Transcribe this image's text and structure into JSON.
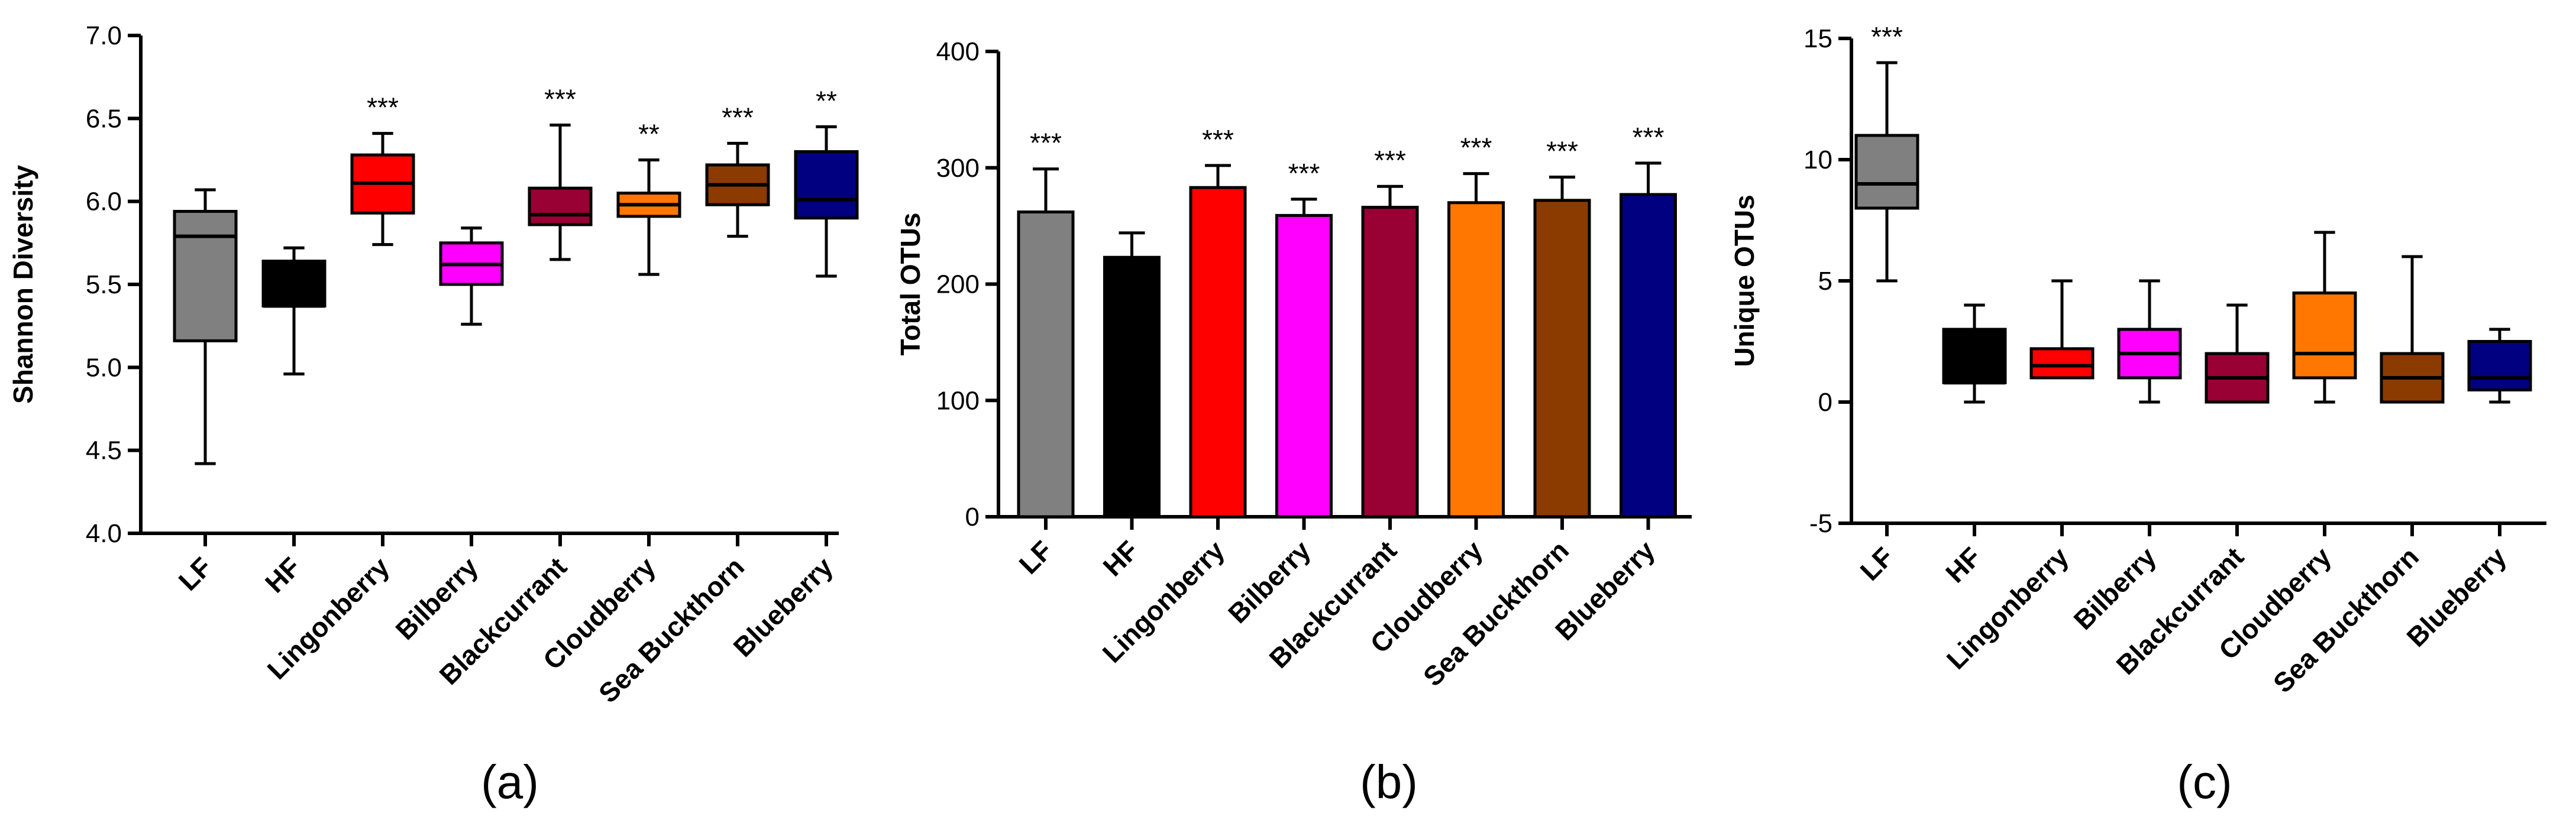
{
  "chart_data": [
    {
      "type": "box",
      "panel_label": "(a)",
      "title": "",
      "xlabel": "",
      "ylabel": "Shannon  Diversity",
      "ylim": [
        4.0,
        7.0
      ],
      "yticks": [
        4.0,
        4.5,
        5.0,
        5.5,
        6.0,
        6.5,
        7.0
      ],
      "ytick_labels": [
        "4.0",
        "4.5",
        "5.0",
        "5.5",
        "6.0",
        "6.5",
        "7.0"
      ],
      "categories": [
        "LF",
        "HF",
        "Lingonberry",
        "Bilberry",
        "Blackcurrant",
        "Cloudberry",
        "Sea Buckthorn",
        "Blueberry"
      ],
      "colors": [
        "#808080",
        "#000000",
        "#ff0000",
        "#ff00ff",
        "#990033",
        "#ff7700",
        "#8b3a00",
        "#000080"
      ],
      "boxes": [
        {
          "min": 4.42,
          "q1": 5.16,
          "median": 5.79,
          "q3": 5.94,
          "max": 6.07
        },
        {
          "min": 4.96,
          "q1": 5.37,
          "median": 5.37,
          "q3": 5.64,
          "max": 5.72
        },
        {
          "min": 5.74,
          "q1": 5.93,
          "median": 6.11,
          "q3": 6.28,
          "max": 6.41
        },
        {
          "min": 5.26,
          "q1": 5.5,
          "median": 5.62,
          "q3": 5.75,
          "max": 5.84
        },
        {
          "min": 5.65,
          "q1": 5.86,
          "median": 5.92,
          "q3": 6.08,
          "max": 6.46
        },
        {
          "min": 5.56,
          "q1": 5.91,
          "median": 5.98,
          "q3": 6.05,
          "max": 6.25
        },
        {
          "min": 5.79,
          "q1": 5.98,
          "median": 6.1,
          "q3": 6.22,
          "max": 6.35
        },
        {
          "min": 5.55,
          "q1": 5.9,
          "median": 6.01,
          "q3": 6.3,
          "max": 6.45
        }
      ],
      "significance": [
        "",
        "",
        "***",
        "",
        "***",
        "**",
        "***",
        "**"
      ]
    },
    {
      "type": "bar",
      "panel_label": "(b)",
      "title": "",
      "xlabel": "",
      "ylabel": "Total OTUs",
      "ylim": [
        0,
        400
      ],
      "yticks": [
        0,
        100,
        200,
        300,
        400
      ],
      "ytick_labels": [
        "0",
        "100",
        "200",
        "300",
        "400"
      ],
      "categories": [
        "LF",
        "HF",
        "Lingonberry",
        "Bilberry",
        "Blackcurrant",
        "Cloudberry",
        "Sea Buckthorn",
        "Blueberry"
      ],
      "colors": [
        "#808080",
        "#000000",
        "#ff0000",
        "#ff00ff",
        "#990033",
        "#ff7700",
        "#8b3a00",
        "#000080"
      ],
      "values": [
        262,
        223,
        283,
        259,
        266,
        270,
        272,
        277
      ],
      "errors": [
        37,
        21,
        19,
        14,
        18,
        25,
        20,
        27
      ],
      "significance": [
        "***",
        "",
        "***",
        "***",
        "***",
        "***",
        "***",
        "***"
      ]
    },
    {
      "type": "box",
      "panel_label": "(c)",
      "title": "",
      "xlabel": "",
      "ylabel": "Unique  OTUs",
      "ylim": [
        -5,
        15
      ],
      "yticks": [
        -5,
        0,
        5,
        10,
        15
      ],
      "ytick_labels": [
        "-5",
        "0",
        "5",
        "10",
        "15"
      ],
      "categories": [
        "LF",
        "HF",
        "Lingonberry",
        "Bilberry",
        "Blackcurrant",
        "Cloudberry",
        "Sea Buckthorn",
        "Blueberry"
      ],
      "colors": [
        "#808080",
        "#000000",
        "#ff0000",
        "#ff00ff",
        "#990033",
        "#ff7700",
        "#8b3a00",
        "#000080"
      ],
      "boxes": [
        {
          "min": 5,
          "q1": 8,
          "median": 9,
          "q3": 11,
          "max": 14
        },
        {
          "min": 0,
          "q1": 0.8,
          "median": 0.8,
          "q3": 3,
          "max": 4
        },
        {
          "min": 1,
          "q1": 1,
          "median": 1.5,
          "q3": 2.2,
          "max": 5
        },
        {
          "min": 0,
          "q1": 1,
          "median": 2,
          "q3": 3,
          "max": 5
        },
        {
          "min": 0,
          "q1": 0,
          "median": 1,
          "q3": 2,
          "max": 4
        },
        {
          "min": 0,
          "q1": 1,
          "median": 2,
          "q3": 4.5,
          "max": 7
        },
        {
          "min": 0,
          "q1": 0,
          "median": 1,
          "q3": 2,
          "max": 6
        },
        {
          "min": 0,
          "q1": 0.5,
          "median": 1,
          "q3": 2.5,
          "max": 3
        }
      ],
      "significance": [
        "***",
        "",
        "",
        "",
        "",
        "",
        "",
        ""
      ]
    }
  ]
}
